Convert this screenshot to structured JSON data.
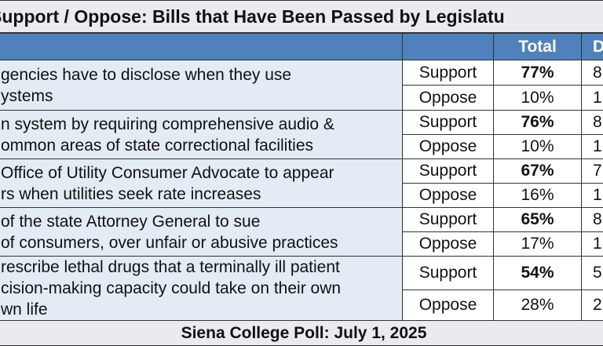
{
  "title": "Support / Oppose: Bills that Have Been Passed by Legislatu",
  "header": {
    "total": "Total",
    "d": "D"
  },
  "rows": [
    {
      "lines": [
        "gencies have to disclose when they use",
        "ystems"
      ],
      "support": {
        "label": "Support",
        "total": "77%",
        "d": "8"
      },
      "oppose": {
        "label": "Oppose",
        "total": "10%",
        "d": "1"
      }
    },
    {
      "lines": [
        "n system by requiring comprehensive audio &",
        "ommon areas of state correctional facilities"
      ],
      "support": {
        "label": "Support",
        "total": "76%",
        "d": "8"
      },
      "oppose": {
        "label": "Oppose",
        "total": "10%",
        "d": "1"
      }
    },
    {
      "lines": [
        "Office of Utility Consumer Advocate to appear",
        "rs when utilities seek rate increases"
      ],
      "support": {
        "label": "Support",
        "total": "67%",
        "d": "7"
      },
      "oppose": {
        "label": "Oppose",
        "total": "16%",
        "d": "1"
      }
    },
    {
      "lines": [
        "of the state Attorney General to sue",
        "of consumers, over unfair or abusive practices"
      ],
      "support": {
        "label": "Support",
        "total": "65%",
        "d": "8"
      },
      "oppose": {
        "label": "Oppose",
        "total": "17%",
        "d": "1"
      }
    },
    {
      "lines": [
        "rescribe lethal drugs that a terminally ill patient",
        "cision-making capacity could take on their own",
        "wn life"
      ],
      "support": {
        "label": "Support",
        "total": "54%",
        "d": "5"
      },
      "oppose": {
        "label": "Oppose",
        "total": "28%",
        "d": "2"
      }
    }
  ],
  "footer": "Siena College Poll: July 1, 2025"
}
